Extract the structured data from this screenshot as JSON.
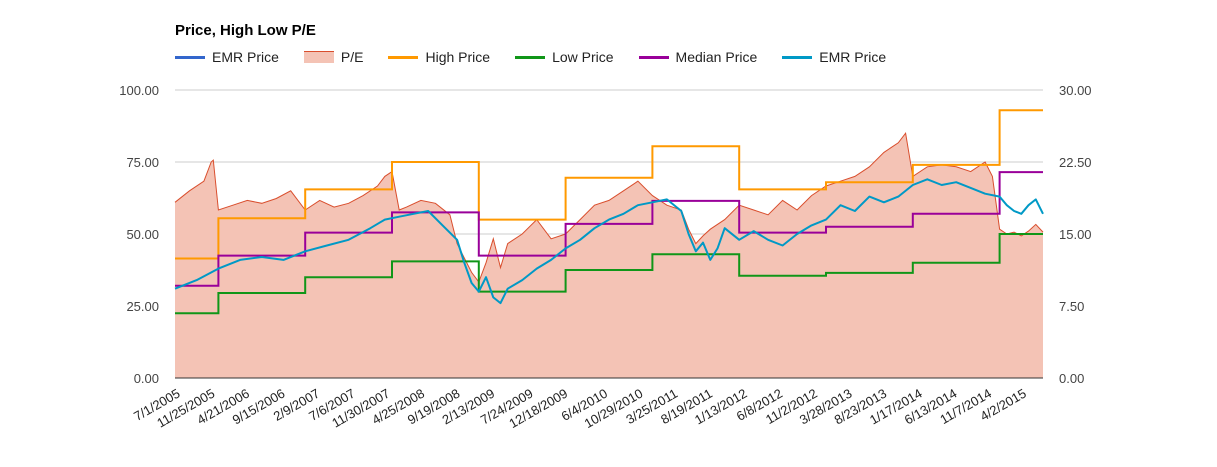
{
  "chart_data": {
    "type": "line",
    "title": "Price, High Low P/E",
    "legend": [
      {
        "name": "EMR Price",
        "color": "#3366cc",
        "kind": "line"
      },
      {
        "name": "P/E",
        "color": "#d94e2d",
        "kind": "area"
      },
      {
        "name": "High Price",
        "color": "#ff9900",
        "kind": "line"
      },
      {
        "name": "Low Price",
        "color": "#109618",
        "kind": "line"
      },
      {
        "name": "Median Price",
        "color": "#990099",
        "kind": "line"
      },
      {
        "name": "EMR Price",
        "color": "#0099c6",
        "kind": "line"
      }
    ],
    "left_axis": {
      "min": 0,
      "max": 100,
      "ticks": [
        "0.00",
        "25.00",
        "50.00",
        "75.00",
        "100.00"
      ]
    },
    "right_axis": {
      "min": 0,
      "max": 30,
      "ticks": [
        "0.00",
        "7.50",
        "15.00",
        "22.50",
        "30.00"
      ]
    },
    "x_range": [
      0,
      120
    ],
    "x_ticks": [
      {
        "label": "7/1/2005",
        "m": 0
      },
      {
        "label": "11/25/2005",
        "m": 4.8
      },
      {
        "label": "4/21/2006",
        "m": 9.6
      },
      {
        "label": "9/15/2006",
        "m": 14.5
      },
      {
        "label": "2/9/2007",
        "m": 19.3
      },
      {
        "label": "7/6/2007",
        "m": 24.2
      },
      {
        "label": "11/30/2007",
        "m": 29.0
      },
      {
        "label": "4/25/2008",
        "m": 33.8
      },
      {
        "label": "9/19/2008",
        "m": 38.7
      },
      {
        "label": "2/13/2009",
        "m": 43.5
      },
      {
        "label": "7/24/2009",
        "m": 48.8
      },
      {
        "label": "12/18/2009",
        "m": 53.6
      },
      {
        "label": "6/4/2010",
        "m": 59.1
      },
      {
        "label": "10/29/2010",
        "m": 64.0
      },
      {
        "label": "3/25/2011",
        "m": 68.8
      },
      {
        "label": "8/19/2011",
        "m": 73.6
      },
      {
        "label": "1/13/2012",
        "m": 78.4
      },
      {
        "label": "6/8/2012",
        "m": 83.3
      },
      {
        "label": "11/2/2012",
        "m": 88.1
      },
      {
        "label": "3/28/2013",
        "m": 92.9
      },
      {
        "label": "8/23/2013",
        "m": 97.7
      },
      {
        "label": "1/17/2014",
        "m": 102.6
      },
      {
        "label": "6/13/2014",
        "m": 107.4
      },
      {
        "label": "11/7/2014",
        "m": 112.2
      },
      {
        "label": "4/2/2015",
        "m": 117.0
      }
    ],
    "high_price_steps": [
      {
        "from": 0,
        "to": 6,
        "value": 41.5
      },
      {
        "from": 6,
        "to": 18,
        "value": 55.5
      },
      {
        "from": 18,
        "to": 30,
        "value": 65.5
      },
      {
        "from": 30,
        "to": 42,
        "value": 75.0
      },
      {
        "from": 42,
        "to": 54,
        "value": 55.0
      },
      {
        "from": 54,
        "to": 66,
        "value": 69.5
      },
      {
        "from": 66,
        "to": 78,
        "value": 80.5
      },
      {
        "from": 78,
        "to": 90,
        "value": 65.5
      },
      {
        "from": 90,
        "to": 102,
        "value": 68.0
      },
      {
        "from": 102,
        "to": 114,
        "value": 74.0
      },
      {
        "from": 114,
        "to": 120,
        "value": 93.0
      }
    ],
    "low_price_steps": [
      {
        "from": 0,
        "to": 6,
        "value": 22.5
      },
      {
        "from": 6,
        "to": 18,
        "value": 29.5
      },
      {
        "from": 18,
        "to": 30,
        "value": 35.0
      },
      {
        "from": 30,
        "to": 42,
        "value": 40.5
      },
      {
        "from": 42,
        "to": 54,
        "value": 30.0
      },
      {
        "from": 54,
        "to": 66,
        "value": 37.5
      },
      {
        "from": 66,
        "to": 78,
        "value": 43.0
      },
      {
        "from": 78,
        "to": 90,
        "value": 35.5
      },
      {
        "from": 90,
        "to": 102,
        "value": 36.5
      },
      {
        "from": 102,
        "to": 114,
        "value": 40.0
      },
      {
        "from": 114,
        "to": 120,
        "value": 50.0
      }
    ],
    "median_price_steps": [
      {
        "from": 0,
        "to": 6,
        "value": 32.0
      },
      {
        "from": 6,
        "to": 18,
        "value": 42.5
      },
      {
        "from": 18,
        "to": 30,
        "value": 50.5
      },
      {
        "from": 30,
        "to": 42,
        "value": 57.5
      },
      {
        "from": 42,
        "to": 54,
        "value": 42.5
      },
      {
        "from": 54,
        "to": 66,
        "value": 53.5
      },
      {
        "from": 66,
        "to": 78,
        "value": 61.5
      },
      {
        "from": 78,
        "to": 90,
        "value": 50.5
      },
      {
        "from": 90,
        "to": 102,
        "value": 52.5
      },
      {
        "from": 102,
        "to": 114,
        "value": 57.0
      },
      {
        "from": 114,
        "to": 120,
        "value": 71.5
      }
    ],
    "emr_price": {
      "x": [
        0,
        3,
        6,
        9,
        12,
        15,
        18,
        21,
        24,
        27,
        29,
        31,
        33,
        35,
        37,
        39,
        40,
        41,
        42,
        43,
        44,
        45,
        46,
        48,
        50,
        52,
        54,
        56,
        58,
        60,
        62,
        64,
        66,
        68,
        70,
        71,
        72,
        73,
        74,
        75,
        76,
        78,
        80,
        82,
        84,
        86,
        88,
        90,
        92,
        94,
        96,
        98,
        100,
        102,
        104,
        106,
        108,
        110,
        112,
        114,
        115,
        116,
        117,
        118,
        119,
        120
      ],
      "y": [
        31,
        34,
        38,
        41,
        42,
        41,
        44,
        46,
        48,
        52,
        55,
        56,
        57,
        58,
        53,
        48,
        40,
        33,
        30,
        35,
        28,
        26,
        31,
        34,
        38,
        41,
        45,
        48,
        52,
        55,
        57,
        60,
        61,
        62,
        58,
        50,
        44,
        47,
        41,
        45,
        52,
        48,
        51,
        48,
        46,
        50,
        53,
        55,
        60,
        58,
        63,
        61,
        63,
        67,
        69,
        67,
        68,
        66,
        64,
        63,
        60,
        58,
        57,
        60,
        62,
        57
      ]
    },
    "pe_ratio": {
      "x": [
        0,
        2,
        4,
        5,
        5.3,
        6,
        8,
        10,
        12,
        14,
        16,
        18,
        20,
        22,
        24,
        26,
        28,
        29,
        30,
        31,
        32,
        34,
        36,
        38,
        39,
        40,
        41,
        42,
        43,
        44,
        45,
        46,
        48,
        50,
        52,
        54,
        56,
        58,
        60,
        62,
        64,
        66,
        68,
        70,
        71,
        72,
        73,
        74,
        76,
        78,
        80,
        82,
        84,
        86,
        88,
        90,
        92,
        94,
        96,
        98,
        99,
        100,
        101,
        102,
        104,
        106,
        108,
        110,
        112,
        113,
        114,
        115,
        116,
        117,
        118,
        119,
        120
      ],
      "y": [
        18.3,
        19.5,
        20.5,
        22.5,
        22.7,
        17.5,
        18.0,
        18.5,
        18.2,
        18.7,
        19.5,
        17.5,
        18.5,
        17.8,
        18.2,
        19.0,
        20.0,
        21.0,
        21.5,
        17.5,
        17.8,
        18.5,
        18.2,
        17.0,
        14.0,
        12.5,
        11.0,
        10.0,
        12.0,
        14.5,
        11.5,
        14.0,
        15.0,
        16.5,
        14.5,
        15.0,
        16.5,
        18.0,
        18.5,
        19.5,
        20.5,
        19.0,
        18.0,
        17.5,
        15.5,
        14.0,
        14.8,
        15.5,
        16.5,
        18.0,
        17.5,
        17.0,
        18.5,
        17.5,
        19.0,
        20.0,
        20.5,
        21.0,
        22.0,
        23.5,
        24.0,
        24.5,
        25.5,
        21.0,
        22.0,
        22.2,
        22.0,
        21.5,
        22.5,
        21.0,
        15.5,
        15.0,
        15.2,
        14.8,
        15.3,
        16.0,
        15.2
      ]
    }
  }
}
